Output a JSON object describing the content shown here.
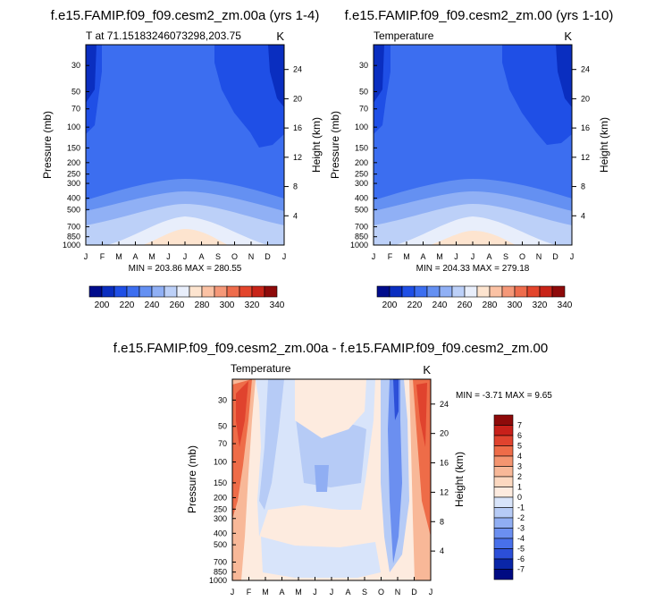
{
  "chart_data": [
    {
      "type": "heatmap",
      "id": "p1",
      "title": "f.e15.FAMIP.f09_f09.cesm2_zm.00a (yrs 1-4)",
      "subtitle_left": "T at 71.15183246073298,203.75",
      "subtitle_right": "K",
      "xlabel": "",
      "ylabel": "Pressure (mb)",
      "ylabel_right": "Height (km)",
      "x_ticks": [
        "J",
        "F",
        "M",
        "A",
        "M",
        "J",
        "J",
        "A",
        "S",
        "O",
        "N",
        "D",
        "J"
      ],
      "y_ticks": [
        "30",
        "50",
        "70",
        "100",
        "150",
        "200",
        "250",
        "300",
        "400",
        "500",
        "700",
        "850",
        "1000"
      ],
      "y_ticks_right": [
        "24",
        "20",
        "16",
        "12",
        "8",
        "4"
      ],
      "stats": "MIN = 203.86  MAX = 280.55",
      "min": 203.86,
      "max": 280.55,
      "colorbar_labels": [
        "200",
        "220",
        "240",
        "260",
        "280",
        "300",
        "320",
        "340"
      ]
    },
    {
      "type": "heatmap",
      "id": "p2",
      "title": "f.e15.FAMIP.f09_f09.cesm2_zm.00 (yrs 1-10)",
      "subtitle_left": "Temperature",
      "subtitle_right": "K",
      "xlabel": "",
      "ylabel": "Pressure (mb)",
      "ylabel_right": "Height (km)",
      "x_ticks": [
        "J",
        "F",
        "M",
        "A",
        "M",
        "J",
        "J",
        "A",
        "S",
        "O",
        "N",
        "D",
        "J"
      ],
      "y_ticks": [
        "30",
        "50",
        "70",
        "100",
        "150",
        "200",
        "250",
        "300",
        "400",
        "500",
        "700",
        "850",
        "1000"
      ],
      "y_ticks_right": [
        "24",
        "20",
        "16",
        "12",
        "8",
        "4"
      ],
      "stats": "MIN = 204.33  MAX = 279.18",
      "min": 204.33,
      "max": 279.18,
      "colorbar_labels": [
        "200",
        "220",
        "240",
        "260",
        "280",
        "300",
        "320",
        "340"
      ]
    },
    {
      "type": "heatmap",
      "id": "p3",
      "title": "f.e15.FAMIP.f09_f09.cesm2_zm.00a - f.e15.FAMIP.f09_f09.cesm2_zm.00",
      "subtitle_left": "Temperature",
      "subtitle_right": "K",
      "xlabel": "",
      "ylabel": "Pressure (mb)",
      "ylabel_right": "Height (km)",
      "x_ticks": [
        "J",
        "F",
        "M",
        "A",
        "M",
        "J",
        "J",
        "A",
        "S",
        "O",
        "N",
        "D",
        "J"
      ],
      "y_ticks": [
        "30",
        "50",
        "70",
        "100",
        "150",
        "200",
        "250",
        "300",
        "400",
        "500",
        "700",
        "850",
        "1000"
      ],
      "y_ticks_right": [
        "24",
        "20",
        "16",
        "12",
        "8",
        "4"
      ],
      "stats": "MIN = -3.71  MAX =   9.65",
      "min": -3.71,
      "max": 9.65,
      "colorbar_labels": [
        "7",
        "6",
        "5",
        "4",
        "3",
        "2",
        "1",
        "0",
        "-1",
        "-2",
        "-3",
        "-4",
        "-5",
        "-6",
        "-7"
      ]
    }
  ],
  "colors": {
    "abs_scale": [
      "#000c8c",
      "#0a2ec0",
      "#1f4fe6",
      "#3c6ef0",
      "#6490f2",
      "#90b0f5",
      "#bcd0f8",
      "#e8eefb",
      "#fde4cf",
      "#fbc2a4",
      "#f59878",
      "#ee6c4c",
      "#e3452c",
      "#c82418",
      "#8e0a0a"
    ],
    "diff_scale": [
      "#8e0a0a",
      "#c8201a",
      "#e0432e",
      "#ee6c48",
      "#f49570",
      "#f8b898",
      "#fcd8c0",
      "#fdebdf",
      "#d8e4fa",
      "#b6cbf6",
      "#90aef3",
      "#6b8ff0",
      "#4870ea",
      "#2c4fd8",
      "#0a26a8",
      "#000a82"
    ]
  }
}
